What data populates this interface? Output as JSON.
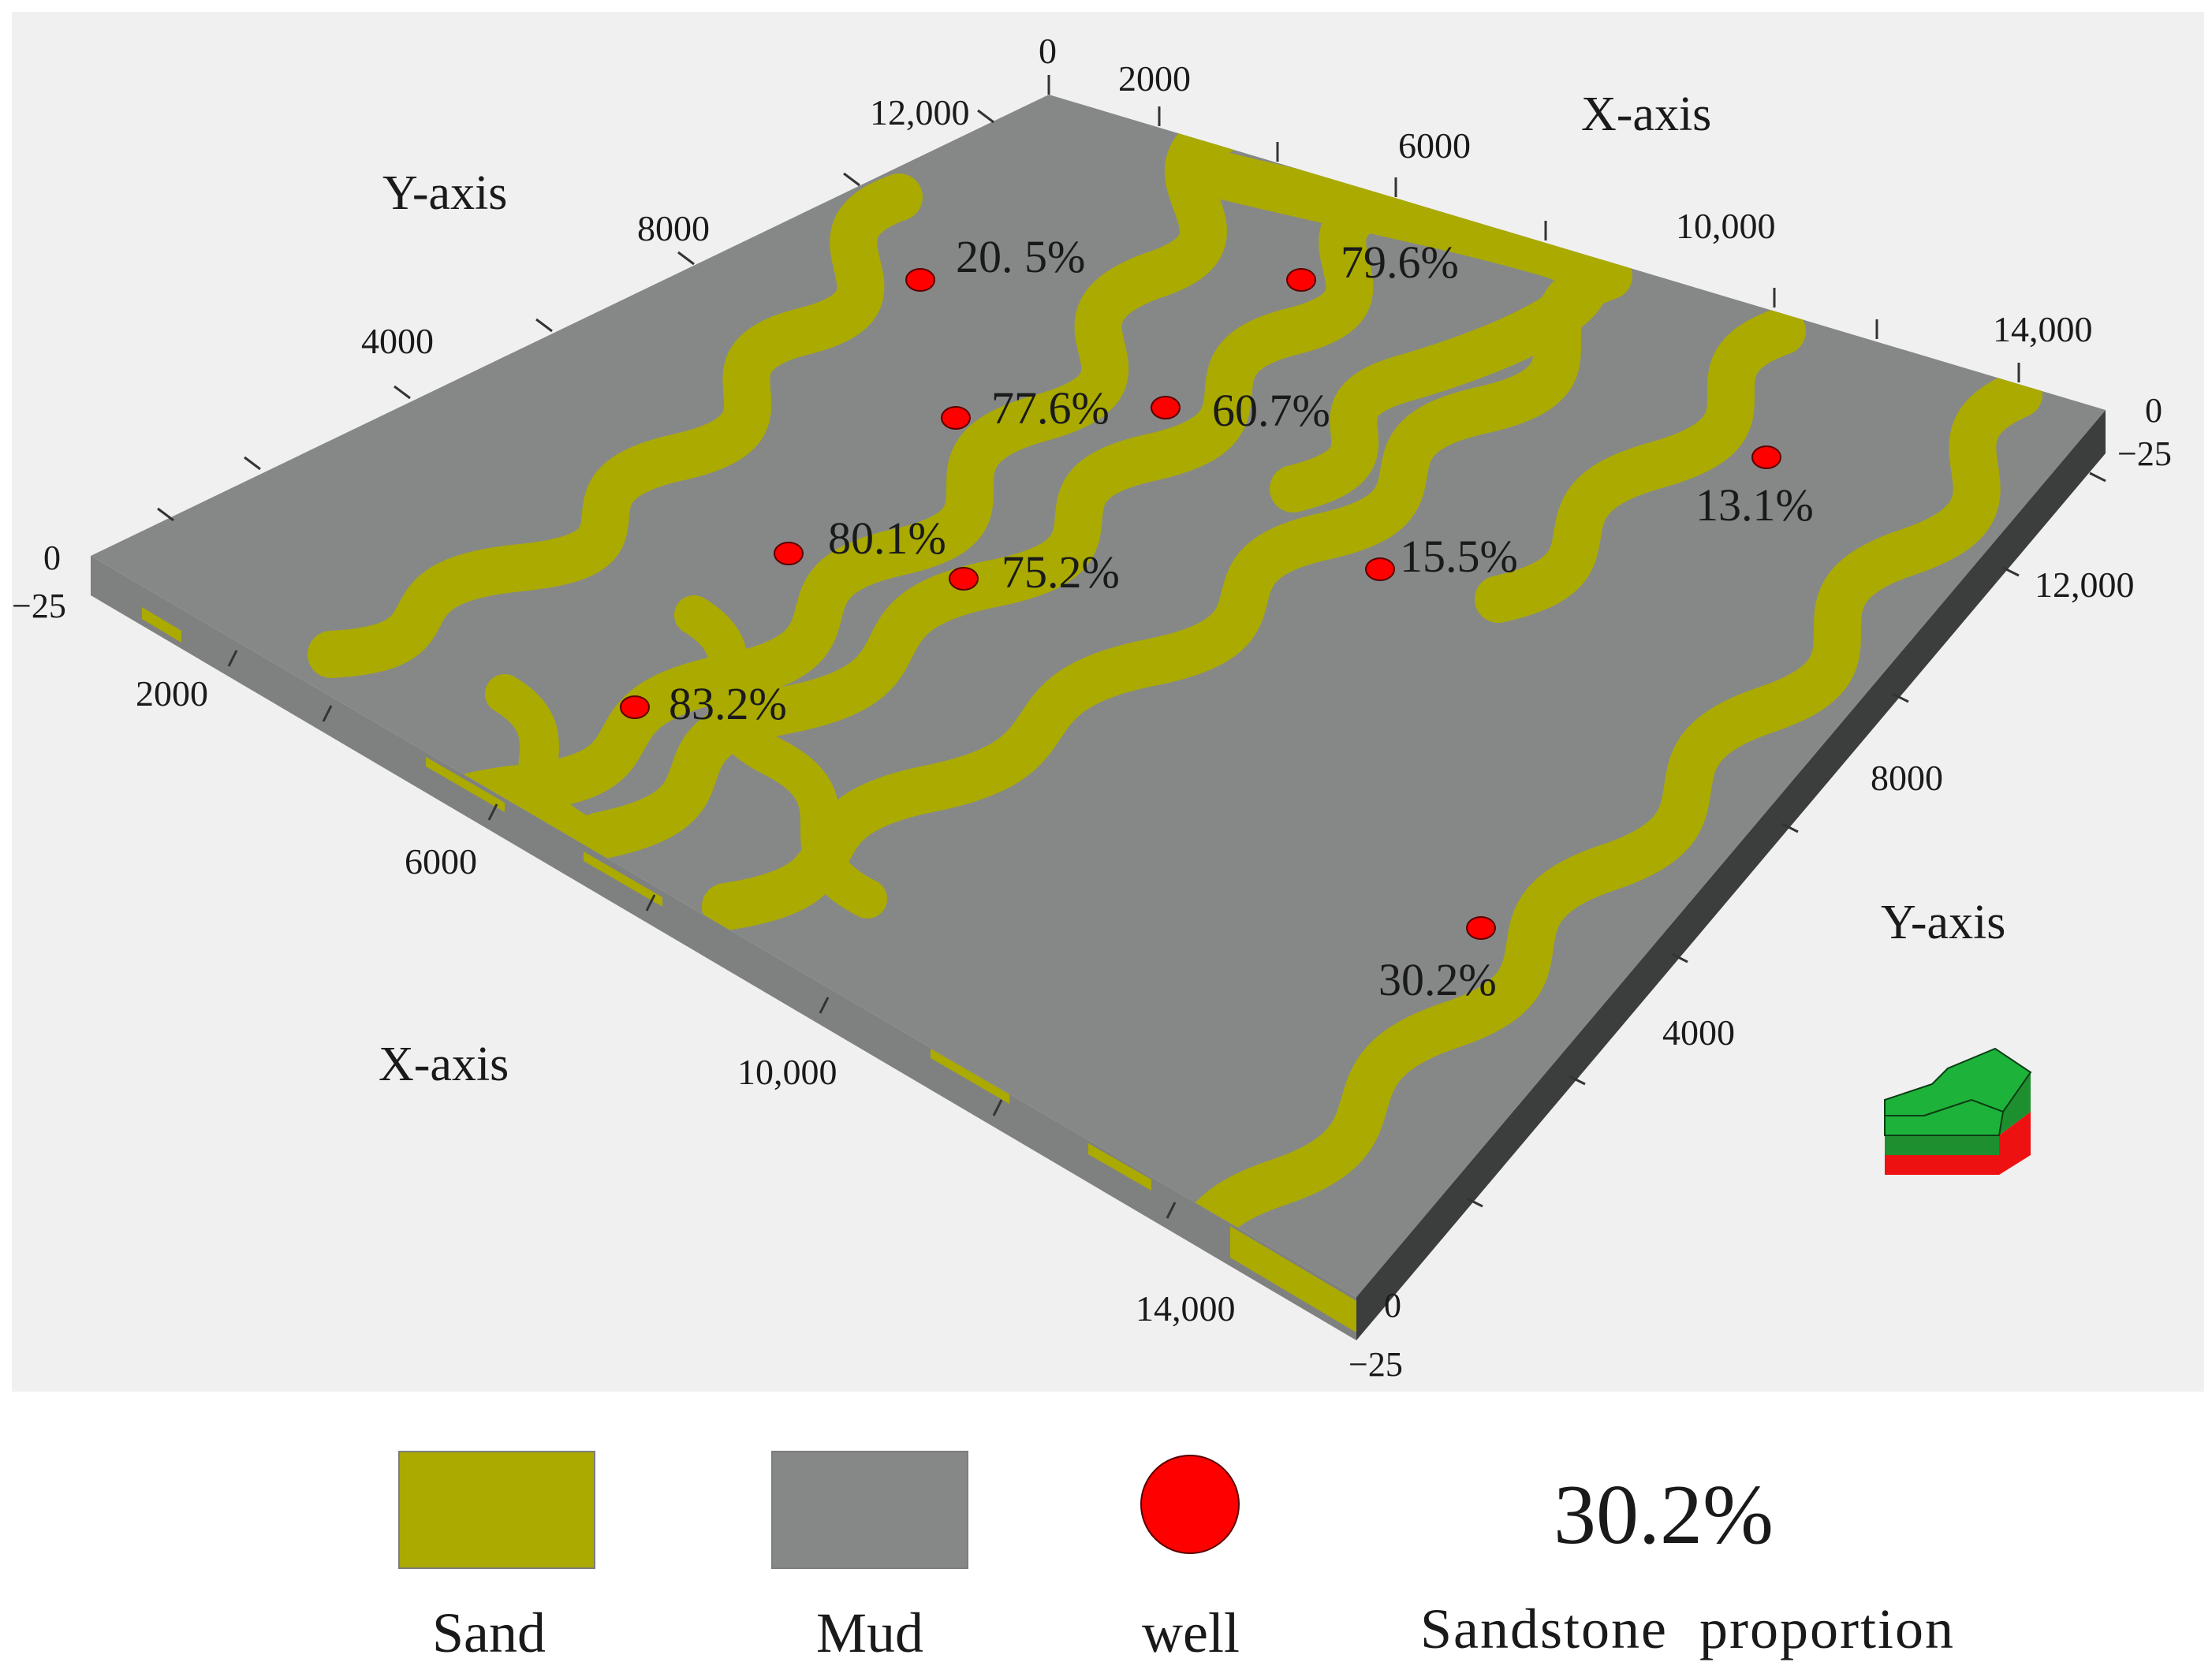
{
  "axes": {
    "top_x_axis_label": "X-axis",
    "top_y_axis_label": "Y-axis",
    "bottom_x_axis_label": "X-axis",
    "right_y_axis_label": "Y-axis",
    "top_x_ticks": [
      "0",
      "2000",
      "6000",
      "10,000",
      "14,000"
    ],
    "top_y_ticks": [
      "12,000",
      "8000",
      "4000"
    ],
    "bottom_x_ticks": [
      "2000",
      "6000",
      "10,000",
      "14,000"
    ],
    "right_y_ticks": [
      "12,000",
      "8000",
      "4000"
    ],
    "depth_ticks": {
      "left_zero": "0",
      "left_bottom": "−25",
      "right_zero": "0",
      "right_bottom": "−25",
      "front_zero": "0",
      "front_bottom": "−25"
    }
  },
  "wells": [
    {
      "label": "20. 5%",
      "sandstone_proportion": 20.5
    },
    {
      "label": "79.6%",
      "sandstone_proportion": 79.6
    },
    {
      "label": "77.6%",
      "sandstone_proportion": 77.6
    },
    {
      "label": "60.7%",
      "sandstone_proportion": 60.7
    },
    {
      "label": "13.1%",
      "sandstone_proportion": 13.1
    },
    {
      "label": "80.1%",
      "sandstone_proportion": 80.1
    },
    {
      "label": "75.2%",
      "sandstone_proportion": 75.2
    },
    {
      "label": "15.5%",
      "sandstone_proportion": 15.5
    },
    {
      "label": "83.2%",
      "sandstone_proportion": 83.2
    },
    {
      "label": "30.2%",
      "sandstone_proportion": 30.2
    }
  ],
  "legend": {
    "sand_label": "Sand",
    "mud_label": "Mud",
    "well_label": "well",
    "proportion_example": "30.2%",
    "proportion_label": "Sandstone  proportion"
  },
  "colors": {
    "sand": "#aaaa00",
    "mud": "#868888",
    "well": "#ff0000",
    "background": "#f0f0f0",
    "side_face": "#3c3e3e",
    "arrow_top": "#1db33a",
    "arrow_mid": "#1e8f2e",
    "arrow_bottom": "#ee1111"
  },
  "icons": {
    "orientation_arrow": "north-arrow-icon"
  }
}
